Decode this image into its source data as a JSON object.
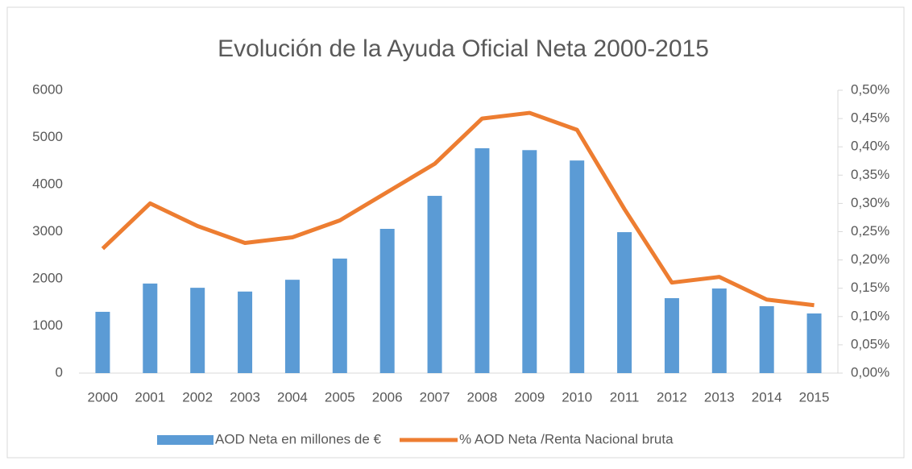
{
  "chart_data": {
    "type": "bar_line",
    "title": "Evolución de la Ayuda Oficial Neta 2000-2015",
    "categories": [
      "2000",
      "2001",
      "2002",
      "2003",
      "2004",
      "2005",
      "2006",
      "2007",
      "2008",
      "2009",
      "2010",
      "2011",
      "2012",
      "2013",
      "2014",
      "2015"
    ],
    "series": [
      {
        "name": "AOD Neta en millones de €",
        "type": "bar",
        "color": "#5b9bd5",
        "values": [
          1300,
          1900,
          1810,
          1730,
          1980,
          2430,
          3060,
          3760,
          4770,
          4730,
          4510,
          2990,
          1590,
          1795,
          1420,
          1265
        ]
      },
      {
        "name": "% AOD Neta /Renta Nacional bruta",
        "type": "line",
        "axis": "y2",
        "color": "#ed7d31",
        "values": [
          0.22,
          0.3,
          0.26,
          0.23,
          0.24,
          0.27,
          0.32,
          0.37,
          0.45,
          0.46,
          0.43,
          0.29,
          0.16,
          0.17,
          0.13,
          0.12
        ]
      }
    ],
    "ylim": [
      0,
      6000
    ],
    "yticks": [
      0,
      1000,
      2000,
      3000,
      4000,
      5000,
      6000
    ],
    "y2lim": [
      0,
      0.5
    ],
    "y2ticks": [
      {
        "value": 0,
        "label": "0,00%"
      },
      {
        "value": 0.05,
        "label": "0,05%"
      },
      {
        "value": 0.1,
        "label": "0,10%"
      },
      {
        "value": 0.15,
        "label": "0,15%"
      },
      {
        "value": 0.2,
        "label": "0,20%"
      },
      {
        "value": 0.25,
        "label": "0,25%"
      },
      {
        "value": 0.3,
        "label": "0,30%"
      },
      {
        "value": 0.35,
        "label": "0,35%"
      },
      {
        "value": 0.4,
        "label": "0,40%"
      },
      {
        "value": 0.45,
        "label": "0,45%"
      },
      {
        "value": 0.5,
        "label": "0,50%"
      }
    ],
    "legend": "bottom"
  }
}
